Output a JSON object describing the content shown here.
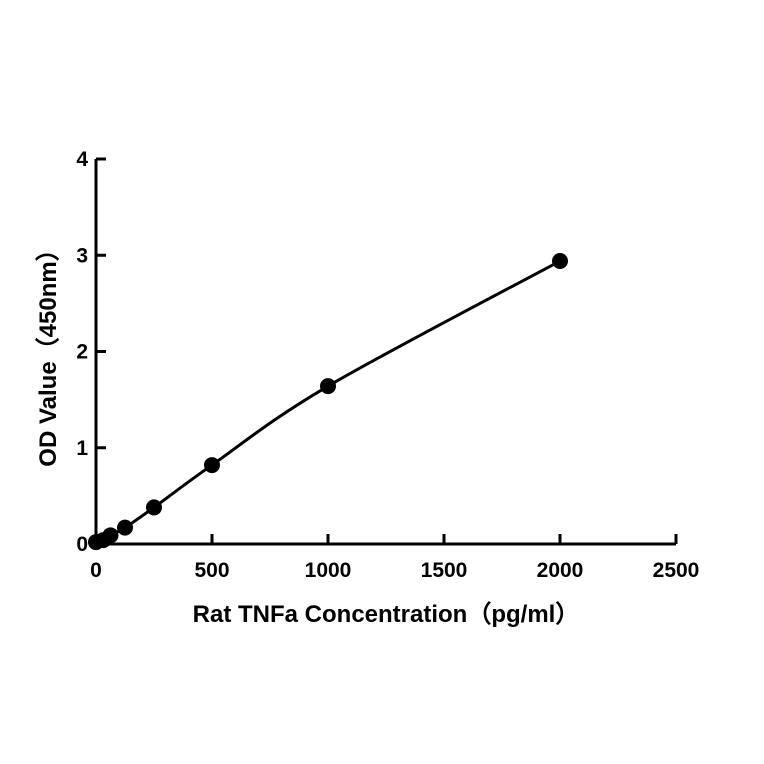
{
  "chart_data": {
    "type": "scatter",
    "title": "",
    "xlabel": "Rat TNFa  Concentration（pg/ml）",
    "ylabel": "OD Value（450nm）",
    "xlim": [
      0,
      2500
    ],
    "ylim": [
      0,
      4
    ],
    "xticks": [
      0,
      500,
      1000,
      1500,
      2000,
      2500
    ],
    "yticks": [
      0,
      1,
      2,
      3,
      4
    ],
    "grid": false,
    "legend": "none",
    "series": [
      {
        "points": [
          {
            "x": 0,
            "y": 0.02
          },
          {
            "x": 31.25,
            "y": 0.04
          },
          {
            "x": 62.5,
            "y": 0.09
          },
          {
            "x": 125,
            "y": 0.17
          },
          {
            "x": 250,
            "y": 0.38
          },
          {
            "x": 500,
            "y": 0.82
          },
          {
            "x": 1000,
            "y": 1.64
          },
          {
            "x": 2000,
            "y": 2.94
          }
        ],
        "fit_curve": true,
        "color": "#000000"
      }
    ]
  }
}
